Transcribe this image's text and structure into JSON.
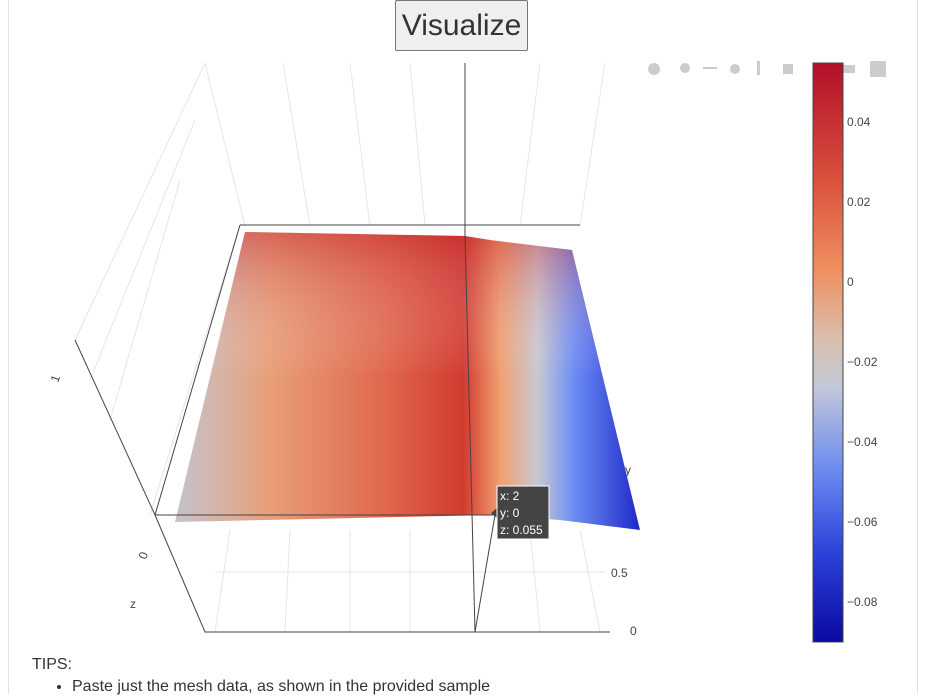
{
  "button": "Visualize",
  "colorbar": {
    "ticks": [
      "0.04",
      "0.02",
      "0",
      "−0.02",
      "−0.04",
      "−0.06",
      "−0.08"
    ]
  },
  "scene": {
    "z_axis": {
      "title": "z",
      "ticks": [
        "0",
        "1"
      ]
    },
    "y_axis": {
      "title": "y",
      "ticks": [
        "0",
        "0.5"
      ]
    }
  },
  "hover": [
    "x: 2",
    "y: 0",
    "z: 0.055"
  ],
  "tips": {
    "title": "TIPS:",
    "items": [
      "Paste just the mesh data, as shown in the provided sample"
    ]
  }
}
